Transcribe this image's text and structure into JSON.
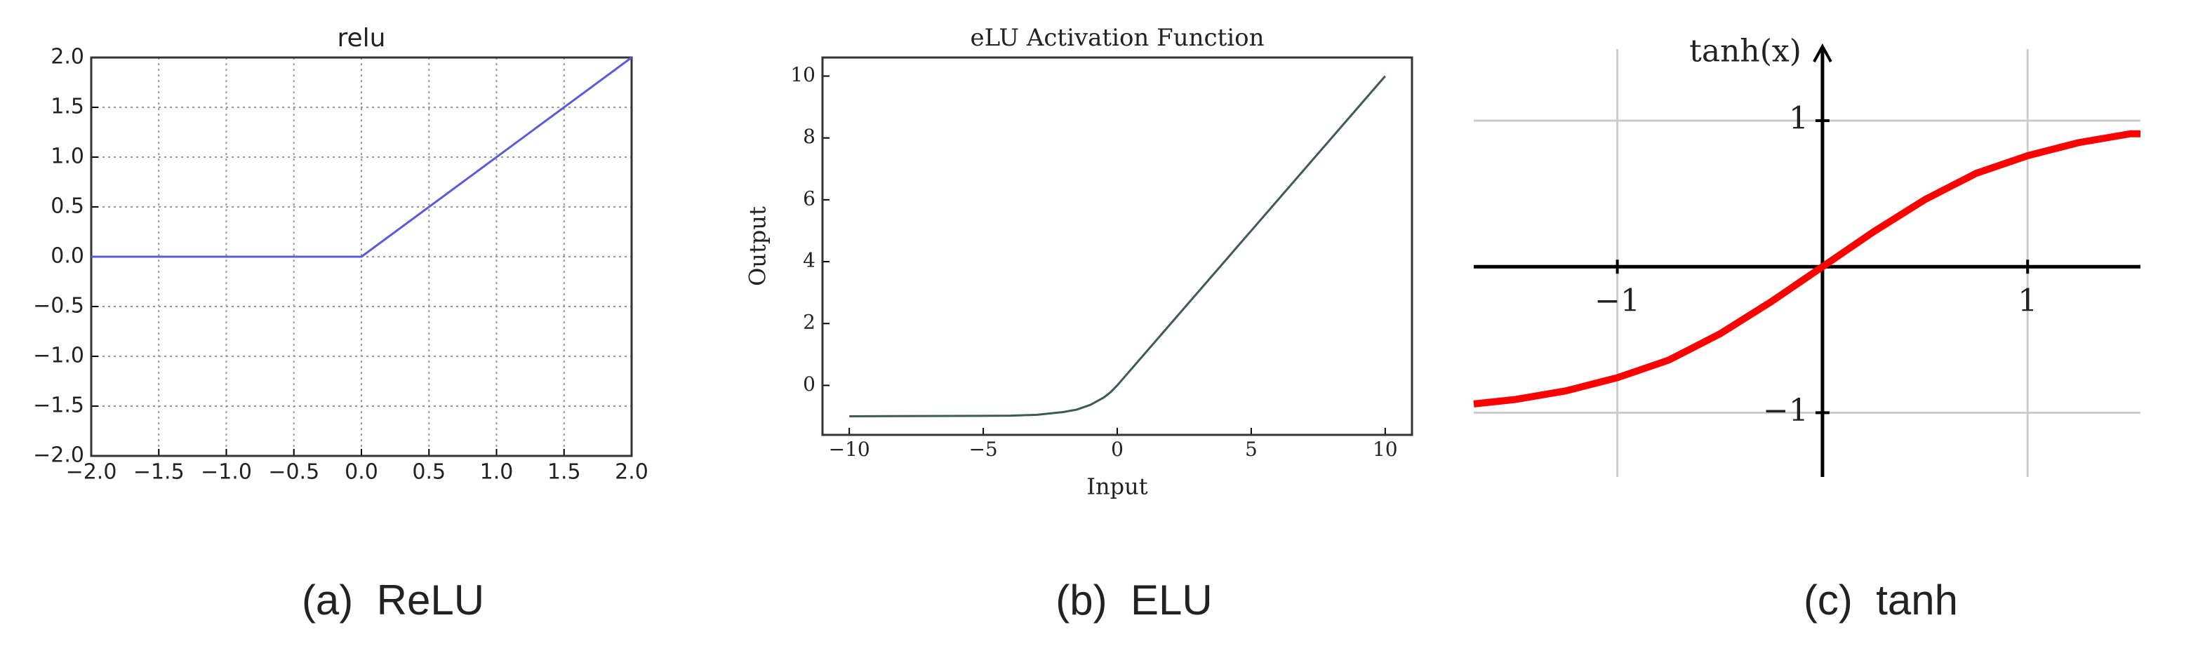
{
  "chart_data": [
    {
      "type": "line",
      "title": "relu",
      "caption": "(a)  ReLU",
      "x": [
        -2,
        0,
        2
      ],
      "values": [
        0,
        0,
        2
      ],
      "color": "#5b5bd6",
      "xlim": [
        -2,
        2
      ],
      "ylim": [
        -2,
        2
      ],
      "xticks": [
        {
          "value": -2,
          "label": "−2.0"
        },
        {
          "value": -1.5,
          "label": "−1.5"
        },
        {
          "value": -1,
          "label": "−1.0"
        },
        {
          "value": -0.5,
          "label": "−0.5"
        },
        {
          "value": 0,
          "label": "0.0"
        },
        0.5,
        {
          "value": 1,
          "label": "1.0"
        },
        1.5,
        {
          "value": 2,
          "label": "2.0"
        }
      ],
      "yticks": [
        {
          "value": -2,
          "label": "−2.0"
        },
        {
          "value": -1.5,
          "label": "−1.5"
        },
        {
          "value": -1,
          "label": "−1.0"
        },
        {
          "value": -0.5,
          "label": "−0.5"
        },
        {
          "value": 0,
          "label": "0.0"
        },
        0.5,
        {
          "value": 1,
          "label": "1.0"
        },
        1.5,
        {
          "value": 2,
          "label": "2.0"
        }
      ],
      "grid": "dotted",
      "spines": "box"
    },
    {
      "type": "line",
      "title": "eLU Activation Function",
      "caption": "(b)  ELU",
      "xlabel": "Input",
      "ylabel": "Output",
      "x": [
        -10,
        -4,
        -3,
        -2,
        -1.5,
        -1,
        -0.5,
        -0.25,
        0,
        10
      ],
      "values": [
        -1,
        -0.98,
        -0.95,
        -0.86,
        -0.78,
        -0.63,
        -0.39,
        -0.22,
        0,
        10
      ],
      "color": "#3d5a5a",
      "xlim": [
        -11,
        11
      ],
      "ylim": [
        -1.6,
        10.6
      ],
      "xticks": [
        {
          "value": -10,
          "label": "−10"
        },
        {
          "value": -5,
          "label": "−5"
        },
        0,
        5,
        10
      ],
      "yticks": [
        0,
        2,
        4,
        6,
        8,
        10
      ],
      "grid": "none",
      "spines": "box"
    },
    {
      "type": "line",
      "caption": "(c)  tanh",
      "ylabel": "tanh(x)",
      "x": [
        -1.7,
        -1.5,
        -1.25,
        -1,
        -0.75,
        -0.5,
        -0.25,
        0,
        0.25,
        0.5,
        0.75,
        1,
        1.25,
        1.5,
        1.55
      ],
      "values": [
        -0.94,
        -0.91,
        -0.85,
        -0.76,
        -0.64,
        -0.46,
        -0.24,
        0,
        0.24,
        0.46,
        0.64,
        0.76,
        0.85,
        0.91,
        0.91
      ],
      "color": "#ff0000",
      "xlim": [
        -1.7,
        1.55
      ],
      "ylim": [
        -1.44,
        1.49
      ],
      "xticks": [
        {
          "value": -1,
          "label": "−1"
        },
        1
      ],
      "yticks": [
        {
          "value": -1,
          "label": "−1"
        },
        1
      ],
      "grid": "solid",
      "spines": "origin"
    }
  ]
}
